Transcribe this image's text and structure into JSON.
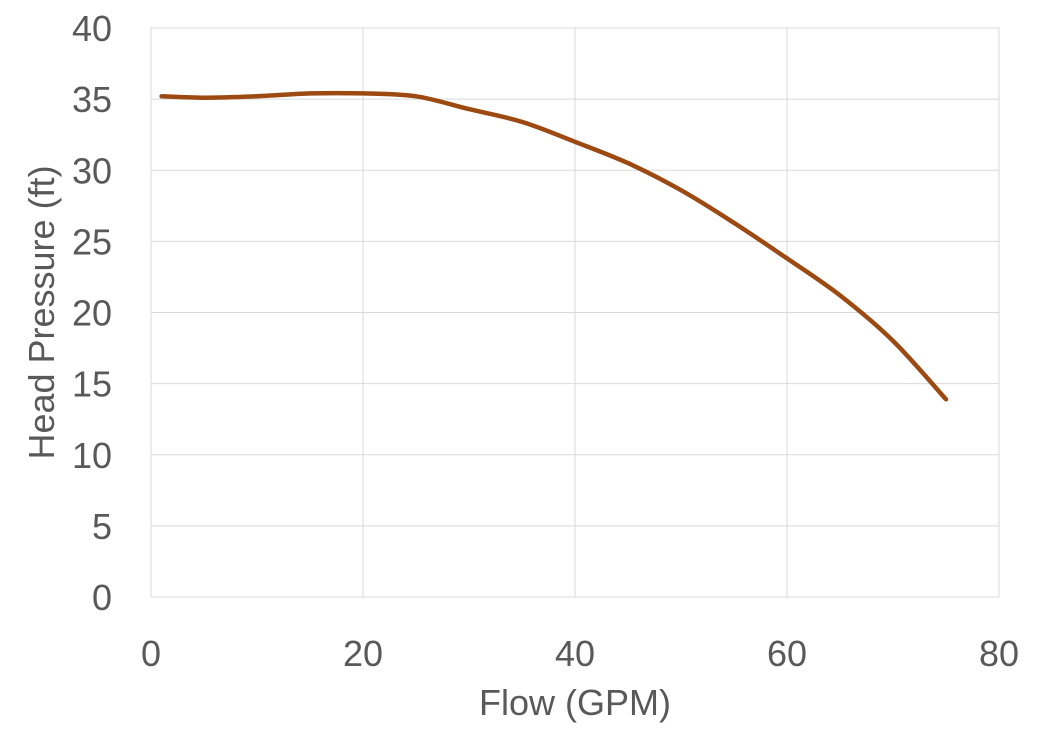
{
  "chart_data": {
    "type": "line",
    "title": "",
    "xlabel": "Flow (GPM)",
    "ylabel": "Head Pressure (ft)",
    "xlim": [
      0,
      80
    ],
    "ylim": [
      0,
      40
    ],
    "xticks": [
      0,
      20,
      40,
      60,
      80
    ],
    "yticks": [
      0,
      5,
      10,
      15,
      20,
      25,
      30,
      35,
      40
    ],
    "grid": true,
    "series": [
      {
        "color": "#9c4a12",
        "x": [
          1,
          5,
          10,
          15,
          20,
          25,
          30,
          35,
          40,
          45,
          50,
          55,
          60,
          65,
          70,
          75
        ],
        "y": [
          35.2,
          35.1,
          35.2,
          35.4,
          35.4,
          35.2,
          34.3,
          33.4,
          32.0,
          30.5,
          28.6,
          26.3,
          23.8,
          21.2,
          18.0,
          13.9
        ]
      }
    ]
  }
}
